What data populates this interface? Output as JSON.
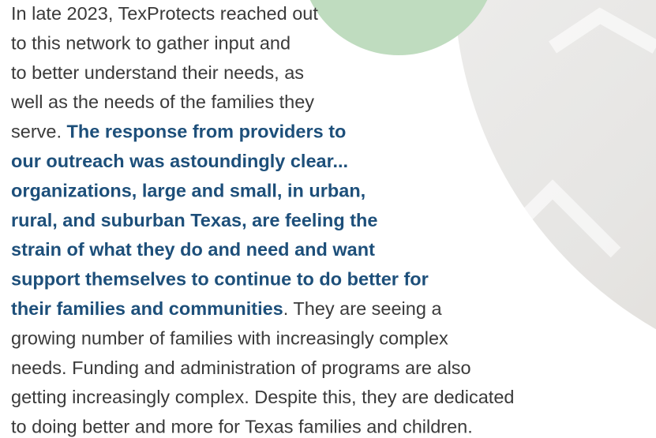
{
  "lines": [
    [
      {
        "text": "In late 2023, TexProtects reached out"
      }
    ],
    [
      {
        "text": "to this network to gather input and"
      }
    ],
    [
      {
        "text": "to better understand their needs, as"
      }
    ],
    [
      {
        "text": "well as the needs of the families they"
      }
    ],
    [
      {
        "text": "serve. "
      },
      {
        "text": "The response from providers to",
        "bold": true
      }
    ],
    [
      {
        "text": "our outreach was astoundingly clear...",
        "bold": true
      }
    ],
    [
      {
        "text": "organizations, large and small, in urban,",
        "bold": true
      }
    ],
    [
      {
        "text": "rural, and suburban Texas, are feeling the",
        "bold": true
      }
    ],
    [
      {
        "text": "strain of what they do and need and want",
        "bold": true
      }
    ],
    [
      {
        "text": "support themselves to continue to do better for",
        "bold": true
      }
    ],
    [
      {
        "text": "their families and communities",
        "bold": true
      },
      {
        "text": ". They are seeing a"
      }
    ],
    [
      {
        "text": "growing number of families with increasingly complex"
      }
    ],
    [
      {
        "text": "needs. Funding and administration of programs are also"
      }
    ],
    [
      {
        "text": "getting increasingly complex. Despite this, they are dedicated"
      }
    ],
    [
      {
        "text": "to doing better and more for Texas families and children."
      }
    ]
  ]
}
